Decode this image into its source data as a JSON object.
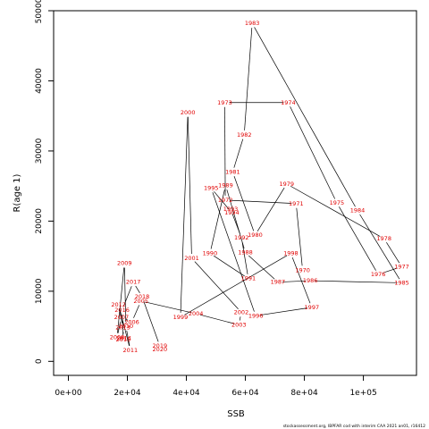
{
  "chart_data": {
    "type": "line",
    "xlabel": "SSB",
    "ylabel": "R(age 1)",
    "xlim": [
      -5000,
      118000
    ],
    "ylim": [
      -2000,
      50000
    ],
    "x_ticks": [
      0,
      20000,
      40000,
      60000,
      80000,
      100000
    ],
    "x_tick_labels": [
      "0e+00",
      "2e+04",
      "4e+04",
      "6e+04",
      "8e+04",
      "1e+05"
    ],
    "y_ticks": [
      0,
      10000,
      20000,
      30000,
      40000,
      50000
    ],
    "y_tick_labels": [
      "0",
      "10000",
      "20000",
      "30000",
      "40000",
      "50000"
    ],
    "label_color": "#e00000",
    "line_color": "#000000",
    "footer": "stockassessment.org, IBPFAR cod with interim CAA 2021 an01, r16412",
    "points": [
      {
        "year": "1970",
        "ssb": 79400,
        "r": 13000
      },
      {
        "year": "1971",
        "ssb": 77200,
        "r": 22500
      },
      {
        "year": "1972",
        "ssb": 53200,
        "r": 23000
      },
      {
        "year": "1973",
        "ssb": 53000,
        "r": 36900
      },
      {
        "year": "1974",
        "ssb": 74500,
        "r": 36900
      },
      {
        "year": "1975",
        "ssb": 91000,
        "r": 22600
      },
      {
        "year": "1976",
        "ssb": 105000,
        "r": 12400
      },
      {
        "year": "1977",
        "ssb": 113000,
        "r": 13500
      },
      {
        "year": "1978",
        "ssb": 107000,
        "r": 17500
      },
      {
        "year": "1979",
        "ssb": 74000,
        "r": 25300
      },
      {
        "year": "1980",
        "ssb": 63300,
        "r": 18000
      },
      {
        "year": "1981",
        "ssb": 55700,
        "r": 27000
      },
      {
        "year": "1982",
        "ssb": 59600,
        "r": 32300
      },
      {
        "year": "1983",
        "ssb": 62300,
        "r": 48200
      },
      {
        "year": "1984",
        "ssb": 98000,
        "r": 21500
      },
      {
        "year": "1985",
        "ssb": 113000,
        "r": 11200
      },
      {
        "year": "1986",
        "ssb": 82000,
        "r": 11500
      },
      {
        "year": "1987",
        "ssb": 71000,
        "r": 11300
      },
      {
        "year": "1988",
        "ssb": 60000,
        "r": 15500
      },
      {
        "year": "1989",
        "ssb": 53300,
        "r": 25100
      },
      {
        "year": "1990",
        "ssb": 48000,
        "r": 15400
      },
      {
        "year": "1991",
        "ssb": 61000,
        "r": 11800
      },
      {
        "year": "1992",
        "ssb": 58700,
        "r": 17600
      },
      {
        "year": "1993",
        "ssb": 55000,
        "r": 21700
      },
      {
        "year": "1994",
        "ssb": 55400,
        "r": 21200
      },
      {
        "year": "1995",
        "ssb": 48400,
        "r": 24700
      },
      {
        "year": "1996",
        "ssb": 63500,
        "r": 6500
      },
      {
        "year": "1997",
        "ssb": 82500,
        "r": 7700
      },
      {
        "year": "1998",
        "ssb": 75400,
        "r": 15400
      },
      {
        "year": "1999",
        "ssb": 38000,
        "r": 6300
      },
      {
        "year": "2000",
        "ssb": 40500,
        "r": 35500
      },
      {
        "year": "2001",
        "ssb": 41800,
        "r": 14700
      },
      {
        "year": "2002",
        "ssb": 58600,
        "r": 7000
      },
      {
        "year": "2003",
        "ssb": 57800,
        "r": 5200
      },
      {
        "year": "2004",
        "ssb": 43200,
        "r": 6800
      },
      {
        "year": "2005",
        "ssb": 24600,
        "r": 8600
      },
      {
        "year": "2006",
        "ssb": 21500,
        "r": 5600
      },
      {
        "year": "2007",
        "ssb": 18000,
        "r": 6300
      },
      {
        "year": "2008",
        "ssb": 16500,
        "r": 3400
      },
      {
        "year": "2009",
        "ssb": 19000,
        "r": 14000
      },
      {
        "year": "2010",
        "ssb": 19500,
        "r": 5000
      },
      {
        "year": "2011",
        "ssb": 21000,
        "r": 1600
      },
      {
        "year": "2012",
        "ssb": 17000,
        "r": 8100
      },
      {
        "year": "2013",
        "ssb": 18500,
        "r": 4800
      },
      {
        "year": "2014",
        "ssb": 18800,
        "r": 3300
      },
      {
        "year": "2015",
        "ssb": 18600,
        "r": 3100
      },
      {
        "year": "2016",
        "ssb": 18200,
        "r": 7300
      },
      {
        "year": "2017",
        "ssb": 22000,
        "r": 11300
      },
      {
        "year": "2018",
        "ssb": 25000,
        "r": 9200
      },
      {
        "year": "2019",
        "ssb": 31000,
        "r": 2200
      },
      {
        "year": "2020",
        "ssb": 31000,
        "r": 1700
      }
    ]
  }
}
